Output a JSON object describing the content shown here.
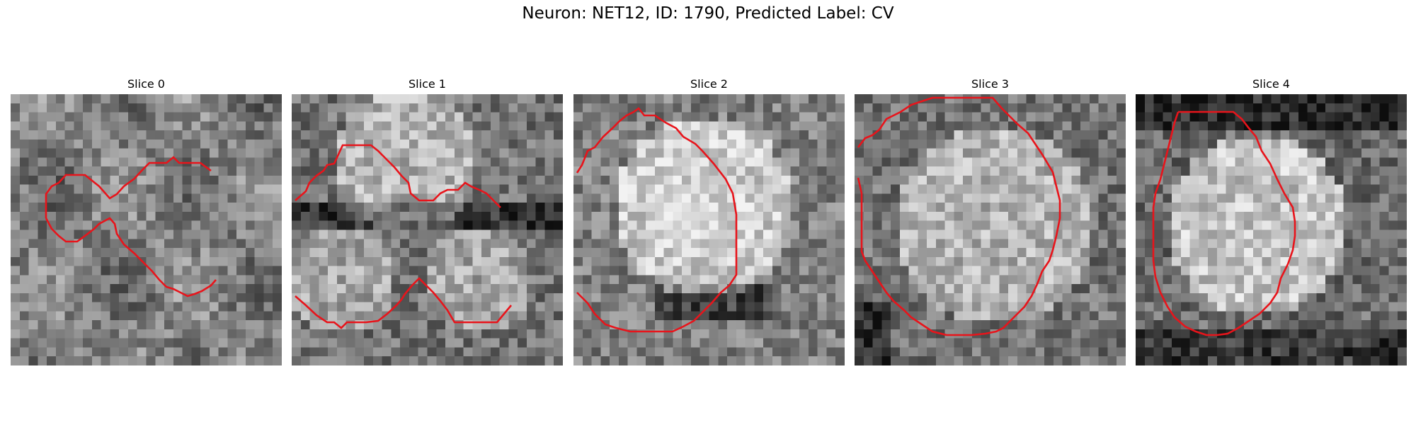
{
  "figure": {
    "title": "Neuron: NET12, ID: 1790, Predicted Label: CV"
  },
  "colors": {
    "contour": "#e8141b",
    "background": "#ffffff"
  },
  "colormap": "gray",
  "panels": [
    {
      "title": "Slice 0"
    },
    {
      "title": "Slice 1"
    },
    {
      "title": "Slice 2"
    },
    {
      "title": "Slice 3"
    },
    {
      "title": "Slice 4"
    }
  ]
}
